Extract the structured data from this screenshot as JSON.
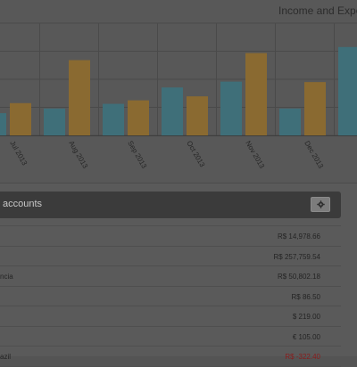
{
  "chart": {
    "title": "Income and Expe",
    "colors": {
      "income": "#3f6f79",
      "expense": "#8a6a31",
      "grid": "#4a4a4a"
    }
  },
  "chart_data": {
    "type": "bar",
    "title": "Income and Expe",
    "categories": [
      "Jul 2013",
      "Aug 2013",
      "Sep 2013",
      "Oct 2013",
      "Nov 2013",
      "Dec 2013",
      ""
    ],
    "series": [
      {
        "values": [
          95,
          115,
          135,
          205,
          230,
          115,
          378
        ]
      },
      {
        "values": [
          138,
          322,
          150,
          167,
          352,
          228,
          null
        ]
      }
    ],
    "ylim": [
      0,
      480
    ],
    "grid": true,
    "legend": "none"
  },
  "accounts": {
    "title": "accounts",
    "settings_icon": "gear-icon",
    "rows": [
      {
        "name": "",
        "amount": "R$ 14,978.66",
        "negative": false
      },
      {
        "name": "",
        "amount": "R$ 257,759.54",
        "negative": false
      },
      {
        "name": "ncia",
        "amount": "R$ 50,802.18",
        "negative": false
      },
      {
        "name": "",
        "amount": "R$ 86.50",
        "negative": false
      },
      {
        "name": "",
        "amount": "$ 219.00",
        "negative": false
      },
      {
        "name": "",
        "amount": "€ 105.00",
        "negative": false
      },
      {
        "name": "azil",
        "amount": "R$ -322.40",
        "negative": true
      }
    ]
  }
}
